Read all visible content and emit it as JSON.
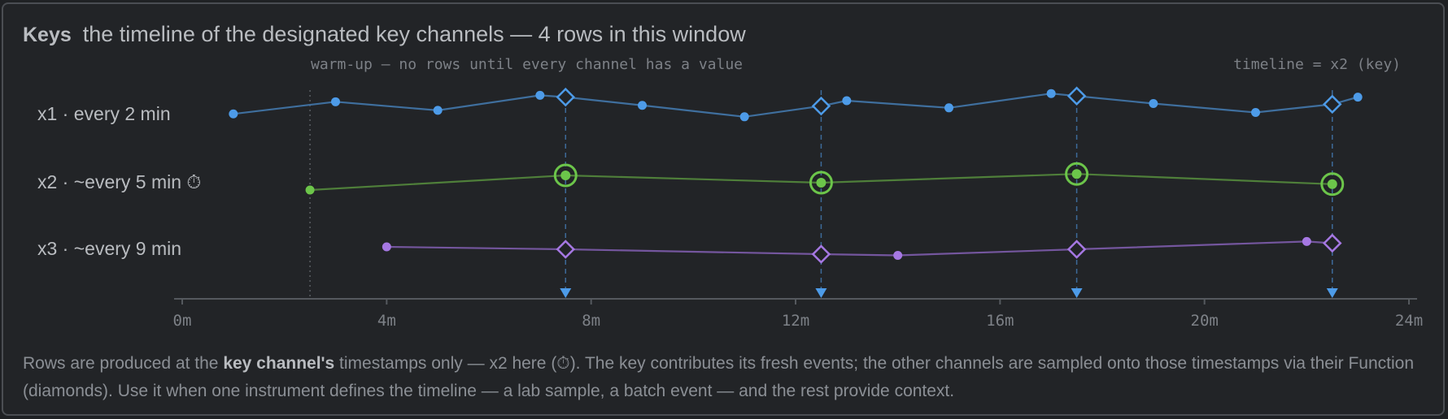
{
  "header": {
    "title": "Keys",
    "subtitle": "the timeline of the designated key channels — 4 rows in this window"
  },
  "annotations": {
    "warmup": "warm-up — no rows until every channel has a value",
    "timeline": "timeline = x2 (key)"
  },
  "footer": {
    "part1": "Rows are produced at the ",
    "bold": "key channel's",
    "part2": " timestamps only — x2 here (⏱). The key contributes its fresh events; the other channels are sampled onto those timestamps via their Function (diamonds). Use it when one instrument defines the timeline — a lab sample, a batch event — and the rest provide context."
  },
  "colors": {
    "x1": "#4d9be8",
    "x1_line": "#3f6f9e",
    "x2": "#6cc54a",
    "x2_line": "#4f7f3a",
    "x3": "#a678e3",
    "x3_line": "#74569e",
    "key_marker": "#4d9be8",
    "axis": "#55595e",
    "text": "#b9bcc0",
    "muted": "#7d8187"
  },
  "chart_data": {
    "type": "scatter",
    "x_unit": "minutes",
    "xlim": [
      0,
      24
    ],
    "x_ticks": [
      0,
      4,
      8,
      12,
      16,
      20,
      24
    ],
    "x_tick_labels": [
      "0m",
      "4m",
      "8m",
      "12m",
      "16m",
      "20m",
      "24m"
    ],
    "warmup_end": 2.5,
    "key_times": [
      7.5,
      12.5,
      17.5,
      22.5
    ],
    "series": [
      {
        "id": "x1",
        "name": "x1 · every 2 min",
        "events": [
          [
            1,
            0.38
          ],
          [
            3,
            0.72
          ],
          [
            5,
            0.48
          ],
          [
            7,
            0.9
          ],
          [
            9,
            0.62
          ],
          [
            11,
            0.3
          ],
          [
            13,
            0.75
          ],
          [
            15,
            0.55
          ],
          [
            17,
            0.95
          ],
          [
            19,
            0.67
          ],
          [
            21,
            0.42
          ],
          [
            23,
            0.85
          ]
        ],
        "sampled": [
          [
            7.5,
            0.85
          ],
          [
            12.5,
            0.6
          ],
          [
            17.5,
            0.88
          ],
          [
            22.5,
            0.65
          ]
        ]
      },
      {
        "id": "x2",
        "name": "x2 · ~every 5 min ⏱",
        "key": true,
        "events": [
          [
            2.5,
            0.25
          ],
          [
            7.5,
            0.75
          ],
          [
            12.5,
            0.5
          ],
          [
            17.5,
            0.8
          ],
          [
            22.5,
            0.45
          ]
        ],
        "sampled": []
      },
      {
        "id": "x3",
        "name": "x3 · ~every 9 min",
        "events": [
          [
            4,
            0.7
          ],
          [
            14,
            0.35
          ],
          [
            22,
            0.92
          ]
        ],
        "sampled": [
          [
            7.5,
            0.6
          ],
          [
            12.5,
            0.4
          ],
          [
            17.5,
            0.6
          ],
          [
            22.5,
            0.85
          ]
        ]
      }
    ]
  }
}
